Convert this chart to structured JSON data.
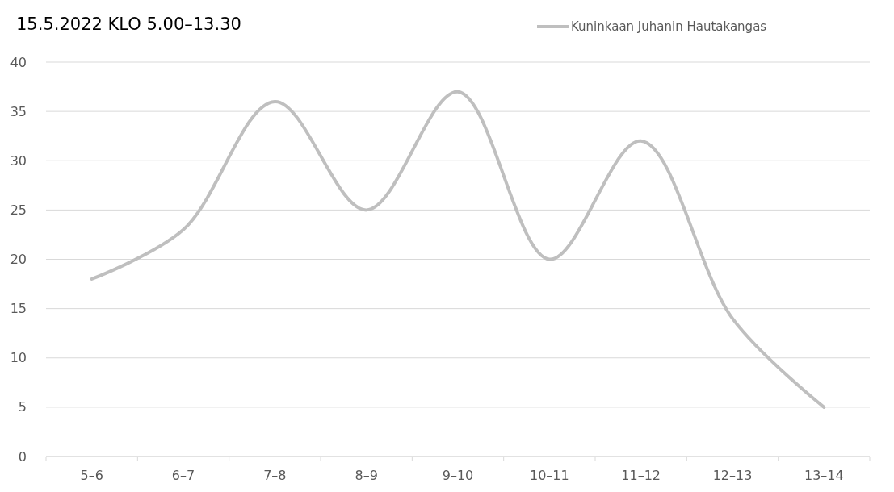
{
  "chart_data": {
    "type": "line",
    "title": "15.5.2022 KLO 5.00–13.30",
    "categories": [
      "5–6",
      "6–7",
      "7–8",
      "8–9",
      "9–10",
      "10–11",
      "11–12",
      "12–13",
      "13–14"
    ],
    "series": [
      {
        "name": "Kuninkaan Juhanin Hautakangas",
        "color": "#bfbfbf",
        "values": [
          18,
          23,
          36,
          25,
          37,
          20,
          32,
          14,
          5
        ]
      }
    ],
    "ylim": [
      0,
      40
    ],
    "yticks": [
      0,
      5,
      10,
      15,
      20,
      25,
      30,
      35,
      40
    ],
    "grid": "y",
    "legend": "top right",
    "marker": "none",
    "line_style": "solid"
  }
}
